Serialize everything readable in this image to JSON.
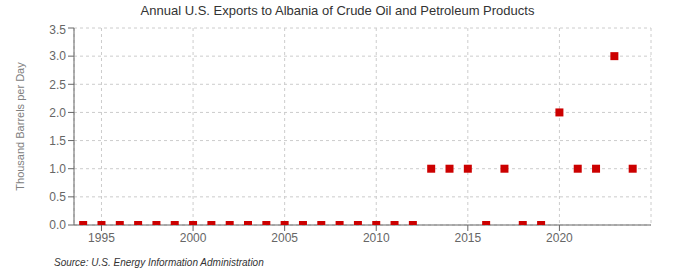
{
  "chart_data": {
    "type": "scatter",
    "title": "Annual U.S. Exports to Albania of Crude Oil and Petroleum Products",
    "ylabel": "Thousand Barrels per Day",
    "annotations": [
      "Source: U.S. Energy Information Administration"
    ],
    "x": [
      1994,
      1995,
      1996,
      1997,
      1998,
      1999,
      2000,
      2001,
      2002,
      2003,
      2004,
      2005,
      2006,
      2007,
      2008,
      2009,
      2010,
      2011,
      2012,
      2013,
      2014,
      2015,
      2016,
      2017,
      2018,
      2019,
      2020,
      2021,
      2022,
      2023,
      2024
    ],
    "values": [
      0,
      0,
      0,
      0,
      0,
      0,
      0,
      0,
      0,
      0,
      0,
      0,
      0,
      0,
      0,
      0,
      0,
      0,
      0,
      1,
      1,
      1,
      0,
      1,
      0,
      0,
      2,
      1,
      1,
      3,
      1
    ],
    "color": "#cc0000",
    "marker": "square",
    "xlim": [
      1993.5,
      2025
    ],
    "ylim": [
      0.0,
      3.5
    ],
    "xticks": [
      1995,
      2000,
      2005,
      2010,
      2015,
      2020
    ],
    "yticks": [
      {
        "value": 0.0,
        "label": "0.0"
      },
      0.5,
      {
        "value": 1.0,
        "label": "1.0"
      },
      1.5,
      {
        "value": 2.0,
        "label": "2.0"
      },
      2.5,
      {
        "value": 3.0,
        "label": "3.0"
      },
      3.5
    ],
    "grid": true
  }
}
